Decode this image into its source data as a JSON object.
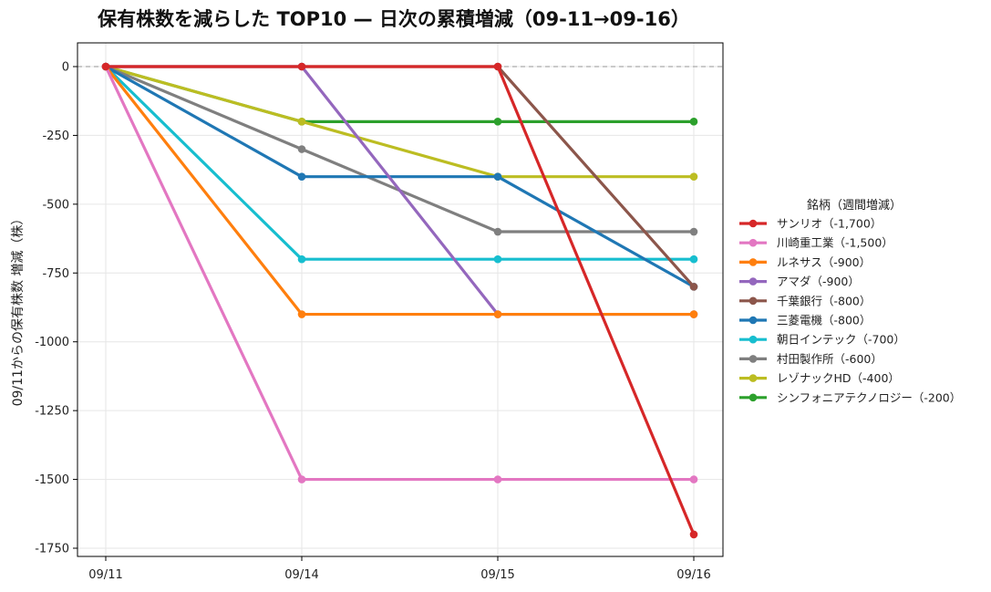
{
  "chart_data": {
    "type": "line",
    "title": "保有株数を減らした TOP10 — 日次の累積増減（09-11→09-16）",
    "xlabel": "",
    "ylabel": "09/11からの保有株数 増減（株）",
    "categories": [
      "09/11",
      "09/14",
      "09/15",
      "09/16"
    ],
    "ylim": [
      -1800,
      80
    ],
    "yticks": [
      0,
      -250,
      -500,
      -750,
      -1000,
      -1250,
      -1500,
      -1750
    ],
    "ytick_labels": [
      "0",
      "-250",
      "-500",
      "-750",
      "-1000",
      "-1250",
      "-1500",
      "-1750"
    ],
    "grid": true,
    "zero_line": "dashed",
    "legend_title": "銘柄（週間増減）",
    "legend_position": "right",
    "series": [
      {
        "name": "サンリオ（-1,700）",
        "color": "#d62728",
        "values": [
          0,
          0,
          0,
          -1700
        ]
      },
      {
        "name": "川崎重工業（-1,500）",
        "color": "#e377c2",
        "values": [
          0,
          -1500,
          -1500,
          -1500
        ]
      },
      {
        "name": "ルネサス（-900）",
        "color": "#ff7f0e",
        "values": [
          0,
          -900,
          -900,
          -900
        ]
      },
      {
        "name": "アマダ（-900）",
        "color": "#9467bd",
        "values": [
          0,
          0,
          -900,
          -900
        ]
      },
      {
        "name": "千葉銀行（-800）",
        "color": "#8c564b",
        "values": [
          0,
          0,
          0,
          -800
        ]
      },
      {
        "name": "三菱電機（-800）",
        "color": "#1f77b4",
        "values": [
          0,
          -400,
          -400,
          -800
        ]
      },
      {
        "name": "朝日インテック（-700）",
        "color": "#17becf",
        "values": [
          0,
          -700,
          -700,
          -700
        ]
      },
      {
        "name": "村田製作所（-600）",
        "color": "#7f7f7f",
        "values": [
          0,
          -300,
          -600,
          -600
        ]
      },
      {
        "name": "レゾナックHD（-400）",
        "color": "#bcbd22",
        "values": [
          0,
          -200,
          -400,
          -400
        ]
      },
      {
        "name": "シンフォニアテクノロジー（-200）",
        "color": "#2ca02c",
        "values": [
          0,
          -200,
          -200,
          -200
        ]
      }
    ]
  }
}
